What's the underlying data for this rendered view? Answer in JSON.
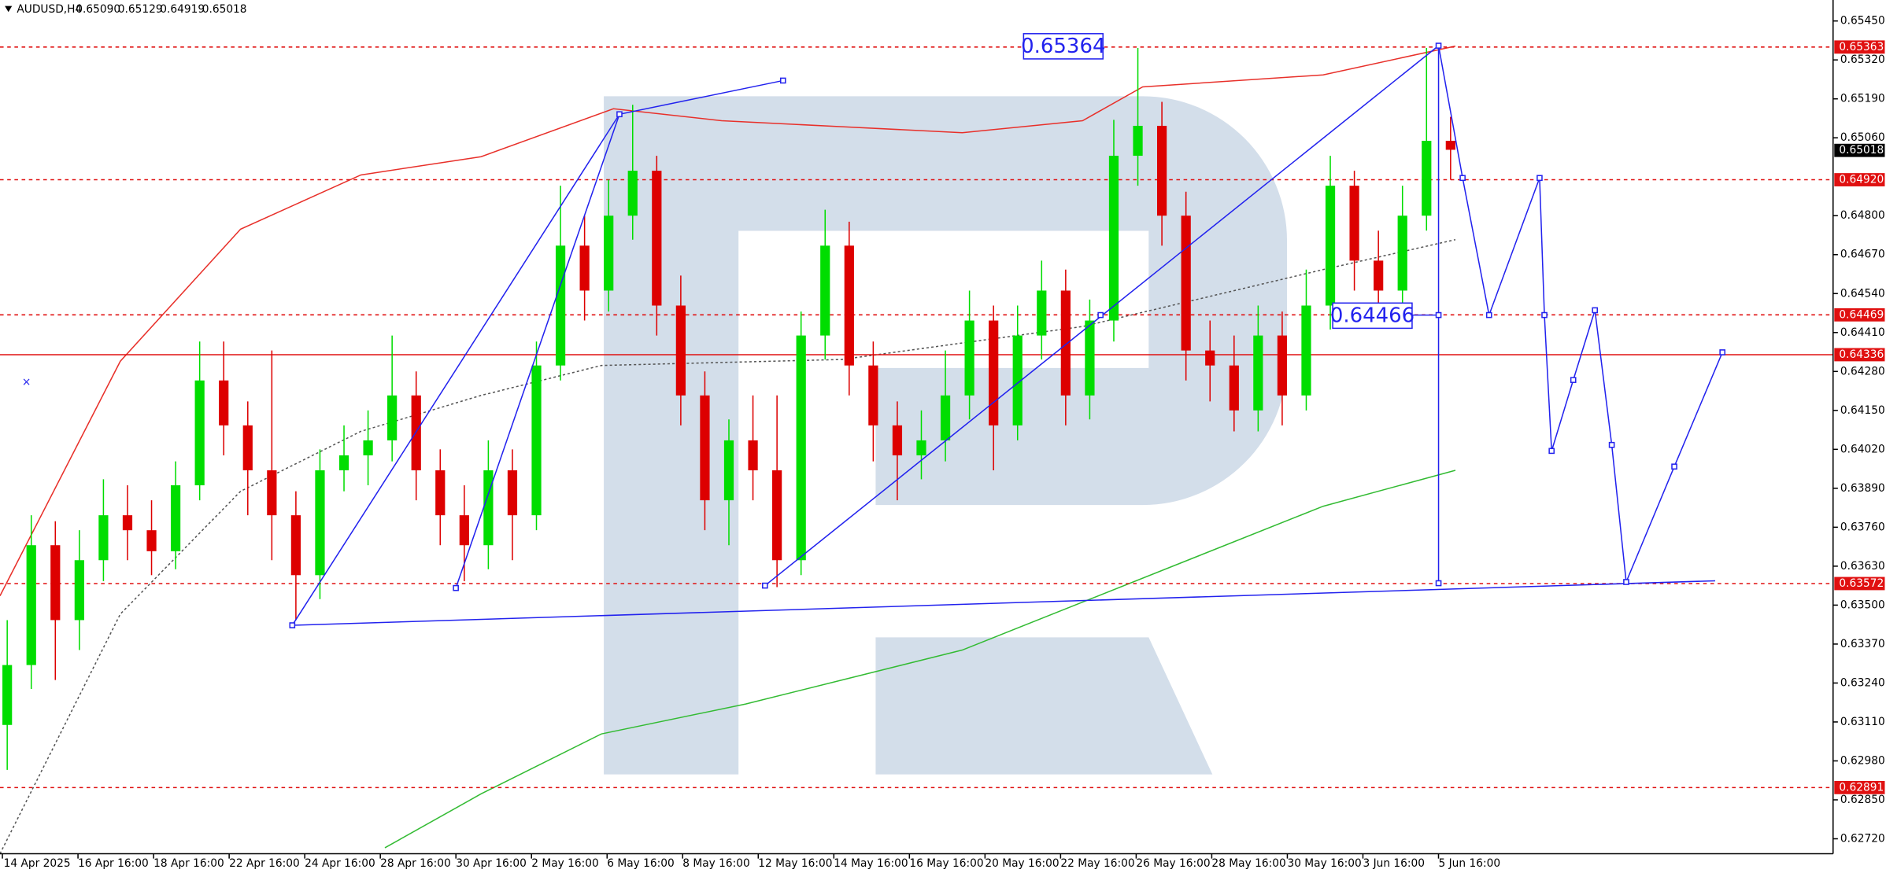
{
  "chart_data": {
    "type": "candlestick",
    "symbol": "AUDUSD,H4",
    "header_values": [
      "0.65090",
      "0.65129",
      "0.64919",
      "0.65018"
    ],
    "ylim": [
      0.6267,
      0.6552
    ],
    "yticks": [
      {
        "value": 0.6545,
        "label": "0.65450"
      },
      {
        "value": 0.6532,
        "label": "0.65320"
      },
      {
        "value": 0.6519,
        "label": "0.65190"
      },
      {
        "value": 0.6506,
        "label": "0.65060"
      },
      {
        "value": 0.648,
        "label": "0.64800"
      },
      {
        "value": 0.6467,
        "label": "0.64670"
      },
      {
        "value": 0.6454,
        "label": "0.64540"
      },
      {
        "value": 0.6441,
        "label": "0.64410"
      },
      {
        "value": 0.6428,
        "label": "0.64280"
      },
      {
        "value": 0.6415,
        "label": "0.64150"
      },
      {
        "value": 0.6402,
        "label": "0.64020"
      },
      {
        "value": 0.6389,
        "label": "0.63890"
      },
      {
        "value": 0.6376,
        "label": "0.63760"
      },
      {
        "value": 0.6363,
        "label": "0.63630"
      },
      {
        "value": 0.635,
        "label": "0.63500"
      },
      {
        "value": 0.6337,
        "label": "0.63370"
      },
      {
        "value": 0.6324,
        "label": "0.63240"
      },
      {
        "value": 0.6311,
        "label": "0.63110"
      },
      {
        "value": 0.6298,
        "label": "0.62980"
      },
      {
        "value": 0.6285,
        "label": "0.62850"
      },
      {
        "value": 0.6272,
        "label": "0.62720"
      }
    ],
    "levels": [
      {
        "value": 0.65363,
        "label": "0.65363",
        "style": "dashed"
      },
      {
        "value": 0.6492,
        "label": "0.64920",
        "style": "dashed"
      },
      {
        "value": 0.64469,
        "label": "0.64469",
        "style": "dashed"
      },
      {
        "value": 0.64336,
        "label": "0.64336",
        "style": "solid"
      },
      {
        "value": 0.63572,
        "label": "0.63572",
        "style": "dashed"
      },
      {
        "value": 0.62891,
        "label": "0.62891",
        "style": "dashed"
      }
    ],
    "current_price": {
      "value": 0.65018,
      "label": "0.65018"
    },
    "annotations": [
      "0.65364",
      "0.64466"
    ],
    "categories": [
      "14 Apr 2025",
      "16 Apr 16:00",
      "18 Apr 16:00",
      "22 Apr 16:00",
      "24 Apr 16:00",
      "28 Apr 16:00",
      "30 Apr 16:00",
      "2 May 16:00",
      "6 May 16:00",
      "8 May 16:00",
      "12 May 16:00",
      "14 May 16:00",
      "16 May 16:00",
      "20 May 16:00",
      "22 May 16:00",
      "26 May 16:00",
      "28 May 16:00",
      "30 May 16:00",
      "3 Jun 16:00",
      "5 Jun 16:00"
    ],
    "open": [
      0.631,
      0.633,
      0.637,
      0.6345,
      0.6365,
      0.638,
      0.6375,
      0.6368,
      0.639,
      0.6425,
      0.641,
      0.6395,
      0.638,
      0.636,
      0.6395,
      0.64,
      0.6405,
      0.642,
      0.6395,
      0.638,
      0.637,
      0.6395,
      0.638,
      0.643,
      0.647,
      0.6455,
      0.648,
      0.6495,
      0.645,
      0.642,
      0.6385,
      0.6405,
      0.6395,
      0.6365,
      0.644,
      0.647,
      0.643,
      0.641,
      0.64,
      0.6405,
      0.642,
      0.6445,
      0.641,
      0.644,
      0.6455,
      0.642,
      0.6445,
      0.65,
      0.651,
      0.648,
      0.6435,
      0.643,
      0.6415,
      0.644,
      0.642,
      0.645,
      0.649,
      0.6465,
      0.6455,
      0.648,
      0.6505
    ],
    "high": [
      0.6345,
      0.638,
      0.6378,
      0.6375,
      0.6392,
      0.639,
      0.6385,
      0.6398,
      0.6438,
      0.6438,
      0.6418,
      0.6435,
      0.6388,
      0.6402,
      0.641,
      0.6415,
      0.644,
      0.6428,
      0.6402,
      0.639,
      0.6405,
      0.6402,
      0.6438,
      0.649,
      0.648,
      0.6492,
      0.6517,
      0.65,
      0.646,
      0.6428,
      0.6412,
      0.642,
      0.642,
      0.6448,
      0.6482,
      0.6478,
      0.6438,
      0.6418,
      0.6415,
      0.6435,
      0.6455,
      0.645,
      0.645,
      0.6465,
      0.6462,
      0.6452,
      0.6512,
      0.6536,
      0.6518,
      0.6488,
      0.6445,
      0.644,
      0.645,
      0.6448,
      0.6462,
      0.65,
      0.6495,
      0.6475,
      0.649,
      0.6536,
      0.6513
    ],
    "low": [
      0.6295,
      0.6322,
      0.6325,
      0.6335,
      0.6358,
      0.6365,
      0.636,
      0.6362,
      0.6385,
      0.64,
      0.638,
      0.6365,
      0.6345,
      0.6352,
      0.6388,
      0.639,
      0.6398,
      0.6385,
      0.637,
      0.6358,
      0.6362,
      0.6365,
      0.6375,
      0.6425,
      0.6445,
      0.6448,
      0.6472,
      0.644,
      0.641,
      0.6375,
      0.637,
      0.6385,
      0.6356,
      0.636,
      0.6432,
      0.642,
      0.6398,
      0.6385,
      0.6392,
      0.6398,
      0.6412,
      0.6395,
      0.6405,
      0.6432,
      0.641,
      0.6412,
      0.6438,
      0.649,
      0.647,
      0.6425,
      0.6418,
      0.6408,
      0.6408,
      0.641,
      0.6415,
      0.6442,
      0.6455,
      0.6445,
      0.6448,
      0.6475,
      0.6492
    ],
    "close": [
      0.633,
      0.637,
      0.6345,
      0.6365,
      0.638,
      0.6375,
      0.6368,
      0.639,
      0.6425,
      0.641,
      0.6395,
      0.638,
      0.636,
      0.6395,
      0.64,
      0.6405,
      0.642,
      0.6395,
      0.638,
      0.637,
      0.6395,
      0.638,
      0.643,
      0.647,
      0.6455,
      0.648,
      0.6495,
      0.645,
      0.642,
      0.6385,
      0.6405,
      0.6395,
      0.6365,
      0.644,
      0.647,
      0.643,
      0.641,
      0.64,
      0.6405,
      0.642,
      0.6445,
      0.641,
      0.644,
      0.6455,
      0.642,
      0.6445,
      0.65,
      0.651,
      0.648,
      0.6435,
      0.643,
      0.6415,
      0.644,
      0.642,
      0.645,
      0.649,
      0.6465,
      0.6455,
      0.648,
      0.6505,
      0.6502
    ],
    "up_color": "#00dd00",
    "down_color": "#dd0000",
    "lines": [
      {
        "color": "#e8302a",
        "style": "solid",
        "x": [
          -0.3,
          4.7,
          9.7,
          14.7,
          19.7,
          25.2,
          29.7,
          34.7,
          39.7,
          44.7,
          47.2,
          54.7,
          60.2
        ],
        "values": [
          0.63531,
          0.64314,
          0.64755,
          0.64936,
          0.64997,
          0.65157,
          0.65117,
          0.65097,
          0.65077,
          0.65117,
          0.6523,
          0.6527,
          0.65366
        ]
      },
      {
        "color": "#33bb33",
        "style": "solid",
        "x": [
          15.7,
          19.7,
          24.7,
          30.7,
          34.7,
          39.7,
          44.7,
          49.7,
          54.7,
          60.2
        ],
        "values": [
          0.6269,
          0.6287,
          0.6307,
          0.6317,
          0.6325,
          0.6335,
          0.6351,
          0.6367,
          0.6383,
          0.6395
        ]
      },
      {
        "color": "#555555",
        "style": "dotted",
        "x": [
          -0.3,
          4.7,
          9.7,
          14.7,
          19.7,
          24.7,
          34.7,
          44.7,
          54.7,
          60.2
        ],
        "values": [
          0.6267,
          0.6347,
          0.6388,
          0.6408,
          0.642,
          0.643,
          0.6432,
          0.6443,
          0.6462,
          0.6472
        ]
      }
    ]
  }
}
